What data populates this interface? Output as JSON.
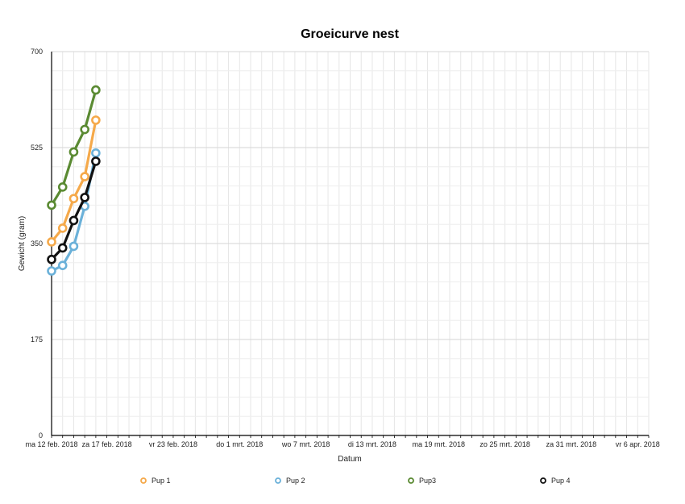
{
  "chart_data": {
    "type": "line",
    "title": "Groeicurve nest",
    "xlabel": "Datum",
    "ylabel": "Gewicht (gram)",
    "ylim": [
      0,
      700
    ],
    "yticks": [
      0,
      175,
      350,
      525,
      700
    ],
    "xlim": [
      "2018-02-12",
      "2018-04-07"
    ],
    "xticks": [
      {
        "date": "2018-02-12",
        "label": "ma 12 feb. 2018"
      },
      {
        "date": "2018-02-17",
        "label": "za 17 feb. 2018"
      },
      {
        "date": "2018-02-23",
        "label": "vr 23 feb. 2018"
      },
      {
        "date": "2018-03-01",
        "label": "do 1 mrt. 2018"
      },
      {
        "date": "2018-03-07",
        "label": "wo 7 mrt. 2018"
      },
      {
        "date": "2018-03-13",
        "label": "di 13 mrt. 2018"
      },
      {
        "date": "2018-03-19",
        "label": "ma 19 mrt. 2018"
      },
      {
        "date": "2018-03-25",
        "label": "zo 25 mrt. 2018"
      },
      {
        "date": "2018-03-31",
        "label": "za 31 mrt. 2018"
      },
      {
        "date": "2018-04-06",
        "label": "vr 6 apr. 2018"
      }
    ],
    "grid": true,
    "legend_position": "bottom",
    "x": [
      "2018-02-12",
      "2018-02-13",
      "2018-02-14",
      "2018-02-15",
      "2018-02-16"
    ],
    "series": [
      {
        "name": "Pup 1",
        "color": "#f5a94a",
        "values": [
          353,
          378,
          432,
          472,
          575
        ]
      },
      {
        "name": "Pup 2",
        "color": "#6bb1d9",
        "values": [
          300,
          310,
          345,
          418,
          515
        ]
      },
      {
        "name": "Pup3",
        "color": "#5a8a32",
        "values": [
          420,
          453,
          517,
          558,
          630
        ]
      },
      {
        "name": "Pup 4",
        "color": "#111111",
        "values": [
          321,
          342,
          392,
          434,
          500
        ]
      }
    ]
  }
}
